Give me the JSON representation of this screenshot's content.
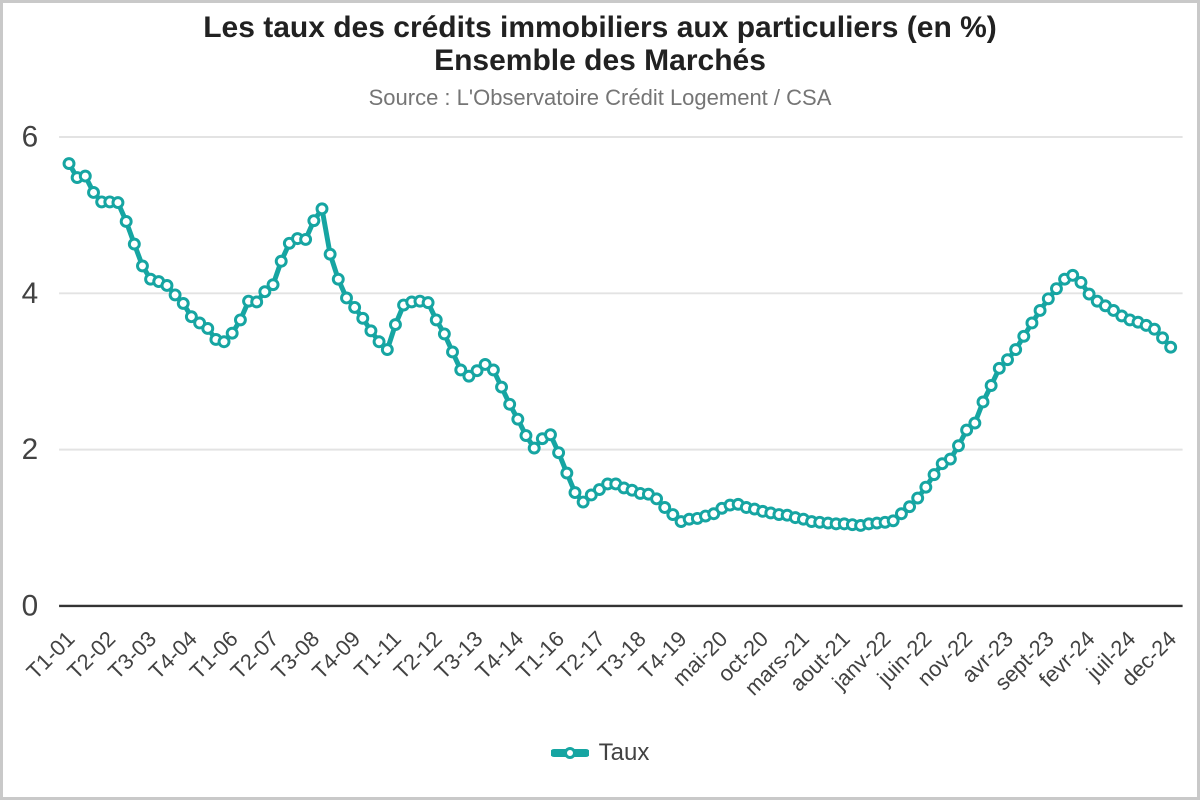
{
  "chart": {
    "title_line1": "Les taux des crédits immobiliers aux particuliers (en %)",
    "title_line2": "Ensemble des Marchés",
    "subtitle": "Source : L'Observatoire Crédit Logement / CSA",
    "legend_label": "Taux",
    "colors": {
      "line": "#16a5a2",
      "marker_fill": "#ffffff",
      "grid": "#e3e3e3",
      "axis": "#333333",
      "title": "#212121",
      "subtitle": "#757575",
      "tick_text": "#424242",
      "border": "#c9c9c9"
    }
  },
  "chart_data": {
    "type": "line",
    "title": "Les taux des crédits immobiliers aux particuliers (en %) — Ensemble des Marchés",
    "subtitle": "Source : L'Observatoire Crédit Logement / CSA",
    "xlabel": "",
    "ylabel": "",
    "ylim": [
      0,
      6.4
    ],
    "yticks": [
      0,
      2,
      4,
      6
    ],
    "grid": true,
    "legend_position": "bottom",
    "label_every": 5,
    "tick_labels": [
      "T1-01",
      "T2-02",
      "T3-03",
      "T4-04",
      "T1-06",
      "T2-07",
      "T3-08",
      "T4-09",
      "T1-11",
      "T2-12",
      "T3-13",
      "T4-14",
      "T1-16",
      "T2-17",
      "T3-18",
      "T4-19",
      "mai-20",
      "oct-20",
      "mars-21",
      "aout-21",
      "janv-22",
      "juin-22",
      "nov-22",
      "avr-23",
      "sept-23",
      "fevr-24",
      "juil-24",
      "dec-24"
    ],
    "series": [
      {
        "name": "Taux",
        "values": [
          5.66,
          5.48,
          5.5,
          5.29,
          5.17,
          5.17,
          5.16,
          4.92,
          4.63,
          4.35,
          4.18,
          4.15,
          4.1,
          3.98,
          3.87,
          3.7,
          3.62,
          3.55,
          3.41,
          3.38,
          3.49,
          3.66,
          3.9,
          3.89,
          4.02,
          4.11,
          4.41,
          4.64,
          4.7,
          4.69,
          4.93,
          5.08,
          4.5,
          4.18,
          3.94,
          3.82,
          3.68,
          3.52,
          3.38,
          3.28,
          3.6,
          3.85,
          3.89,
          3.9,
          3.88,
          3.66,
          3.48,
          3.25,
          3.02,
          2.94,
          3.01,
          3.09,
          3.02,
          2.8,
          2.58,
          2.39,
          2.18,
          2.02,
          2.14,
          2.19,
          1.96,
          1.7,
          1.45,
          1.33,
          1.42,
          1.49,
          1.56,
          1.56,
          1.51,
          1.48,
          1.44,
          1.43,
          1.37,
          1.26,
          1.17,
          1.08,
          1.11,
          1.12,
          1.15,
          1.18,
          1.25,
          1.29,
          1.3,
          1.26,
          1.24,
          1.21,
          1.19,
          1.17,
          1.16,
          1.13,
          1.11,
          1.08,
          1.07,
          1.06,
          1.05,
          1.05,
          1.04,
          1.03,
          1.05,
          1.06,
          1.07,
          1.09,
          1.18,
          1.27,
          1.38,
          1.52,
          1.68,
          1.82,
          1.88,
          2.05,
          2.25,
          2.34,
          2.61,
          2.82,
          3.04,
          3.15,
          3.28,
          3.45,
          3.62,
          3.78,
          3.93,
          4.06,
          4.18,
          4.23,
          4.14,
          3.99,
          3.9,
          3.84,
          3.78,
          3.71,
          3.66,
          3.63,
          3.59,
          3.54,
          3.43,
          3.31
        ]
      }
    ]
  }
}
